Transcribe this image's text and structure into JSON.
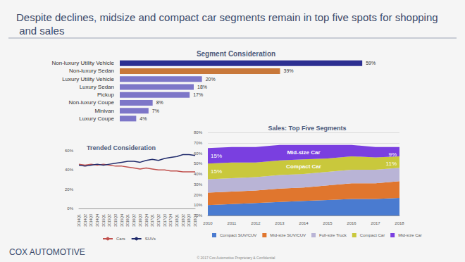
{
  "title": "Despite declines, midsize and compact car segments remain in top five spots for shopping and sales",
  "footer": "COX AUTOMOTIVE",
  "copyright": "© 2017 Cox Automotive Proprietary & Confidential",
  "chart_data": [
    {
      "type": "bar",
      "title": "Segment Consideration",
      "orientation": "horizontal",
      "categories": [
        "Non-luxury Utility Vehicle",
        "Non-luxury Sedan",
        "Luxury Utility Vehicle",
        "Luxury Sedan",
        "Pickup",
        "Non-luxury Coupe",
        "Minivan",
        "Luxury Coupe"
      ],
      "values": [
        59,
        39,
        20,
        18,
        17,
        8,
        7,
        4
      ],
      "value_labels": [
        "59%",
        "39%",
        "20%",
        "18%",
        "17%",
        "8%",
        "7%",
        "4%"
      ],
      "colors": [
        "#2c2f91",
        "#c8783a",
        "#7d76c8",
        "#7d76c8",
        "#7d76c8",
        "#7d76c8",
        "#7d76c8",
        "#7d76c8"
      ],
      "data_labels": true,
      "xlim": [
        0,
        60
      ],
      "tick_labels": "y",
      "grid": false
    },
    {
      "type": "line",
      "title": "Trended Consideration",
      "categories": [
        "2014Q1",
        "2014Q2",
        "2014Q3",
        "2014Q4",
        "2015Q1",
        "2015Q2",
        "2015Q3",
        "2015Q4",
        "2016Q1",
        "2016Q2",
        "2016Q3",
        "2016Q4",
        "2017Q1",
        "2017Q2",
        "2017Q3",
        "2017Q4",
        "2018Q1",
        "2018Q2",
        "2018Q3",
        "2018Q4"
      ],
      "series": [
        {
          "name": "Cars",
          "color": "#c0504d",
          "values": [
            46,
            45,
            46,
            45,
            46,
            45,
            44,
            44,
            43,
            42,
            41,
            42,
            41,
            40,
            40,
            39,
            39,
            38,
            38,
            38
          ]
        },
        {
          "name": "SUVs",
          "color": "#1f2a6b",
          "values": [
            45,
            44,
            45,
            46,
            45,
            46,
            47,
            48,
            49,
            49,
            48,
            50,
            51,
            50,
            52,
            53,
            54,
            56,
            56,
            55
          ]
        }
      ],
      "ylim": [
        0,
        60
      ],
      "yticks": [
        {
          "value": 0,
          "label": "0%"
        },
        {
          "value": 20,
          "label": "20%"
        },
        {
          "value": 40,
          "label": "40%"
        },
        {
          "value": 60,
          "label": "60%"
        }
      ],
      "legend": "bottom",
      "grid": false
    },
    {
      "type": "area",
      "title": "Sales: Top Five Segments",
      "stacked": true,
      "categories": [
        "2010",
        "2011",
        "2012",
        "2013",
        "2014",
        "2015",
        "2016",
        "2017",
        "2018"
      ],
      "series": [
        {
          "name": "Compact SUV/CUV",
          "color": "#4a7bd0",
          "values": [
            10,
            11,
            12,
            13,
            14,
            15,
            16,
            16,
            17
          ]
        },
        {
          "name": "Mid-size SUV/CUV",
          "color": "#e0762e",
          "values": [
            12,
            12,
            12,
            13,
            13,
            14,
            15,
            15,
            16
          ]
        },
        {
          "name": "Full-size Truck",
          "color": "#b9b4d6",
          "values": [
            13,
            13,
            13,
            13,
            13,
            13,
            13,
            13,
            13
          ]
        },
        {
          "name": "Compact Car",
          "color": "#c9c83c",
          "values": [
            15,
            15,
            14,
            14,
            14,
            13,
            13,
            12,
            11
          ],
          "value_labels": [
            "15%",
            null,
            null,
            null,
            null,
            null,
            null,
            null,
            "11%"
          ]
        },
        {
          "name": "Mid-size Car",
          "color": "#7a3fe0",
          "values": [
            15,
            15,
            15,
            15,
            14,
            13,
            11,
            10,
            9
          ],
          "value_labels": [
            "15%",
            null,
            null,
            null,
            null,
            null,
            null,
            null,
            "9%"
          ]
        }
      ],
      "ylim": [
        0,
        80
      ],
      "yticks": [
        {
          "value": 0,
          "label": "0%"
        },
        {
          "value": 10,
          "label": "10%"
        },
        {
          "value": 20,
          "label": "20%"
        },
        {
          "value": 30,
          "label": "30%"
        },
        {
          "value": 40,
          "label": "40%"
        },
        {
          "value": 50,
          "label": "50%"
        },
        {
          "value": 60,
          "label": "60%"
        },
        {
          "value": 70,
          "label": "70%"
        },
        {
          "value": 80,
          "label": "80%"
        }
      ],
      "annotations": [
        {
          "text": "Mid-size Car",
          "x": "2014"
        },
        {
          "text": "Compact Car",
          "x": "2014"
        }
      ],
      "legend": "bottom",
      "grid": true
    }
  ]
}
